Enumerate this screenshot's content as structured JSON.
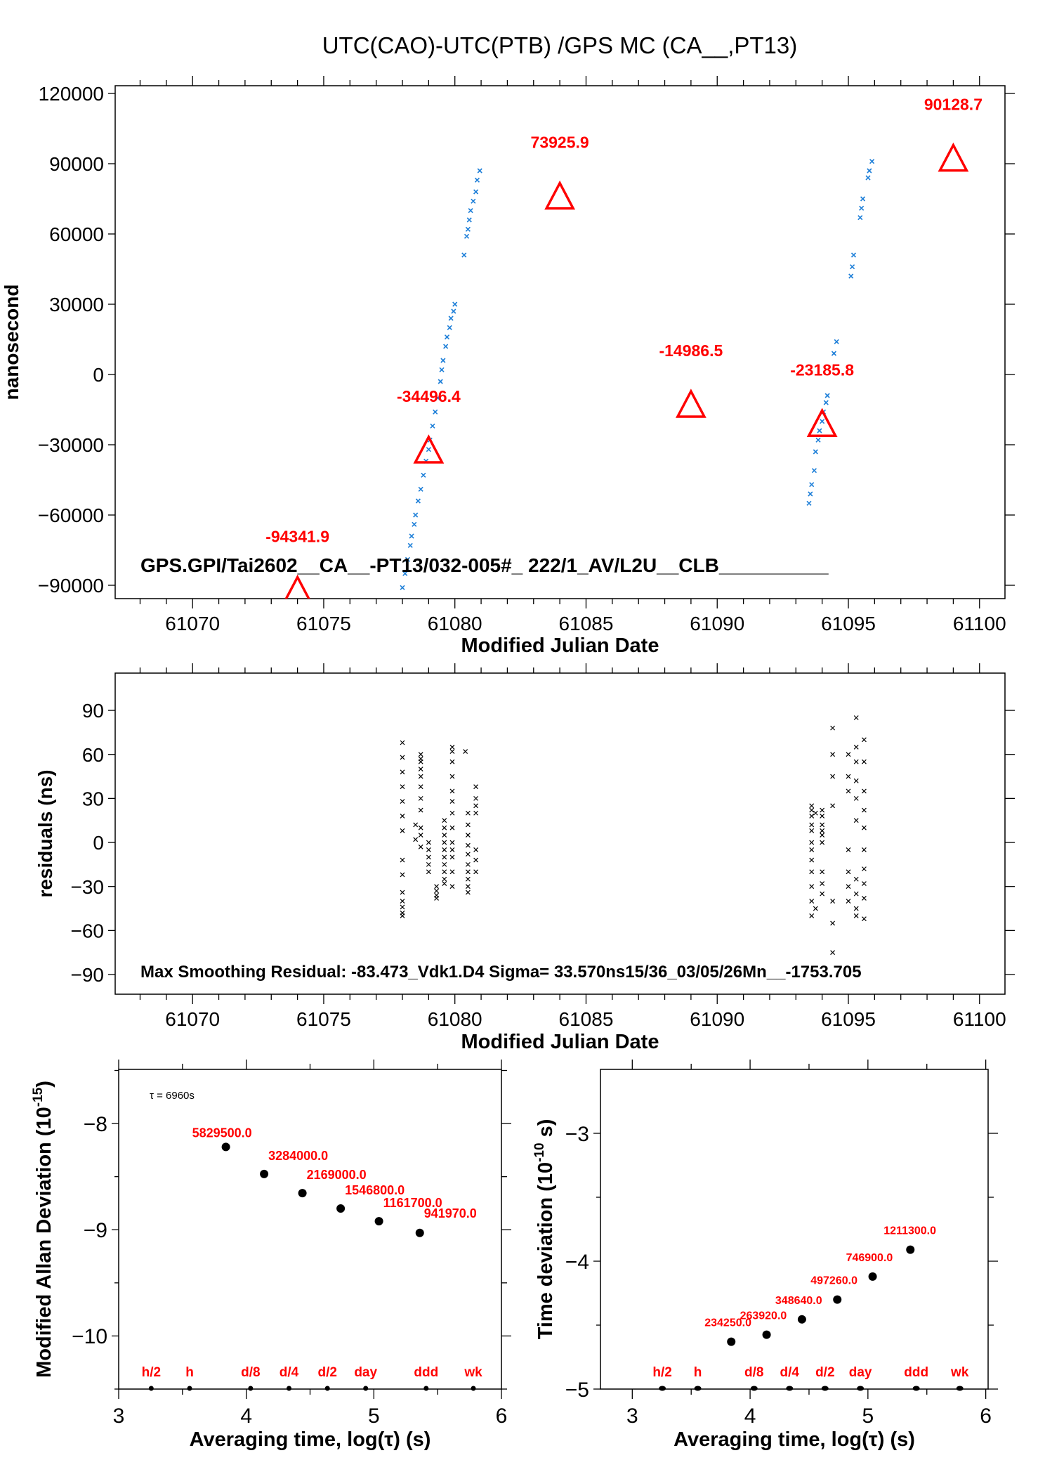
{
  "chart_data": [
    {
      "type": "scatter",
      "title": "UTC(CAO)-UTC(PTB)  /GPS  MC  (CA__,PT13)",
      "xlabel": "Modified Julian Date",
      "ylabel": "nanosecond",
      "xlim": [
        61067.05,
        61100.97
      ],
      "ylim": [
        -95700,
        123300
      ],
      "xticks": [
        61070,
        61075,
        61080,
        61085,
        61090,
        61095,
        61100
      ],
      "yticks": [
        120000,
        90000,
        60000,
        30000,
        0,
        -30000,
        -60000,
        -90000
      ],
      "ytick_labels": [
        "120000",
        "90000",
        "60000",
        "30000",
        "0",
        "−30000",
        "−60000",
        "−90000"
      ],
      "annotation": "GPS.GPI/Tai2602__CA__-PT13/032-005#_  222/1_AV/L2U__CLB__________",
      "colors": {
        "data": "#1e7fd8",
        "markers": "#ff0000"
      },
      "series": [
        {
          "marker": "x",
          "points": [
            [
              61077.9,
              -97000
            ],
            [
              61078.0,
              -91000
            ],
            [
              61078.1,
              -85000
            ],
            [
              61078.2,
              -79000
            ],
            [
              61078.3,
              -73000
            ],
            [
              61078.35,
              -69000
            ],
            [
              61078.45,
              -64000
            ],
            [
              61078.5,
              -60000
            ],
            [
              61078.6,
              -54000
            ],
            [
              61078.7,
              -49000
            ],
            [
              61078.8,
              -43000
            ],
            [
              61078.9,
              -37000
            ],
            [
              61079.0,
              -32000
            ],
            [
              61079.05,
              -28000
            ],
            [
              61079.15,
              -22000
            ],
            [
              61079.25,
              -16000
            ],
            [
              61079.35,
              -10000
            ],
            [
              61079.45,
              -3000
            ],
            [
              61079.5,
              2000
            ],
            [
              61079.55,
              6000
            ],
            [
              61079.65,
              12000
            ],
            [
              61079.7,
              16000
            ],
            [
              61079.8,
              20000
            ],
            [
              61079.85,
              24000
            ],
            [
              61079.95,
              27000
            ],
            [
              61080.0,
              30000
            ],
            [
              61080.35,
              51000
            ],
            [
              61080.45,
              59000
            ],
            [
              61080.5,
              62000
            ],
            [
              61080.55,
              66000
            ],
            [
              61080.6,
              70000
            ],
            [
              61080.7,
              74000
            ],
            [
              61080.8,
              78000
            ],
            [
              61080.85,
              83000
            ],
            [
              61080.95,
              87000
            ],
            [
              61093.5,
              -55000
            ],
            [
              61093.55,
              -51000
            ],
            [
              61093.6,
              -47000
            ],
            [
              61093.7,
              -41000
            ],
            [
              61093.75,
              -33000
            ],
            [
              61093.85,
              -28000
            ],
            [
              61093.9,
              -24000
            ],
            [
              61094.0,
              -20000
            ],
            [
              61094.05,
              -16000
            ],
            [
              61094.15,
              -12000
            ],
            [
              61094.2,
              -9000
            ],
            [
              61094.45,
              9000
            ],
            [
              61094.55,
              14000
            ],
            [
              61095.1,
              42000
            ],
            [
              61095.15,
              46000
            ],
            [
              61095.2,
              51000
            ],
            [
              61095.45,
              67000
            ],
            [
              61095.5,
              71000
            ],
            [
              61095.55,
              75000
            ],
            [
              61095.75,
              84000
            ],
            [
              61095.8,
              87000
            ],
            [
              61095.9,
              91000
            ]
          ]
        },
        {
          "marker": "triangle",
          "points": [
            [
              61074,
              -94341.9
            ],
            [
              61079,
              -34496.4
            ],
            [
              61084,
              73925.9
            ],
            [
              61089,
              -14986.5
            ],
            [
              61094,
              -23185.8
            ],
            [
              61099,
              90128.7
            ]
          ],
          "labels": [
            "-94341.9",
            "-34496.4",
            "73925.9",
            "-14986.5",
            "-23185.8",
            "90128.7"
          ]
        }
      ]
    },
    {
      "type": "scatter",
      "xlabel": "Modified Julian Date",
      "ylabel": "residuals (ns)",
      "xlim": [
        61067.05,
        61100.97
      ],
      "ylim": [
        -103.4,
        115.4
      ],
      "xticks": [
        61070,
        61075,
        61080,
        61085,
        61090,
        61095,
        61100
      ],
      "yticks": [
        90,
        60,
        30,
        0,
        -30,
        -60,
        -90
      ],
      "ytick_labels": [
        "90",
        "60",
        "30",
        "0",
        "−30",
        "−60",
        "−90"
      ],
      "annotation": "Max Smoothing Residual: -83.473_Vdk1.D4  Sigma= 33.570ns15/36_03/05/26Mn__-1753.705",
      "colors": {
        "data": "#000000"
      },
      "columns": [
        {
          "x": 61078.0,
          "y": [
            68,
            58,
            48,
            38,
            28,
            18,
            8,
            -12,
            -22,
            -34,
            -40,
            -44,
            -48,
            -50
          ]
        },
        {
          "x": 61078.5,
          "y": [
            12,
            2
          ]
        },
        {
          "x": 61078.7,
          "y": [
            60,
            57,
            55,
            50,
            45,
            38,
            30,
            22,
            10,
            5,
            -3
          ]
        },
        {
          "x": 61079.0,
          "y": [
            0,
            -5,
            -10,
            -15,
            -20
          ]
        },
        {
          "x": 61079.3,
          "y": [
            -30,
            -33,
            -36,
            -38
          ]
        },
        {
          "x": 61079.6,
          "y": [
            15,
            10,
            5,
            0,
            -5,
            -10,
            -15,
            -20,
            -25,
            -28
          ]
        },
        {
          "x": 61079.9,
          "y": [
            65,
            62,
            55,
            45,
            35,
            28,
            20,
            10,
            0,
            -5,
            -10,
            -20,
            -30
          ]
        },
        {
          "x": 61080.4,
          "y": [
            62
          ]
        },
        {
          "x": 61080.5,
          "y": [
            20,
            12,
            5,
            -2,
            -8,
            -15,
            -20,
            -25,
            -30,
            -34
          ]
        },
        {
          "x": 61080.8,
          "y": [
            38,
            30,
            25,
            20,
            -5,
            -12,
            -20
          ]
        },
        {
          "x": 61093.6,
          "y": [
            25,
            22,
            18,
            12,
            8,
            0,
            -5,
            -12,
            -20,
            -30,
            -40,
            -50
          ]
        },
        {
          "x": 61093.75,
          "y": [
            20,
            -45
          ]
        },
        {
          "x": 61094.0,
          "y": [
            22,
            18,
            12,
            8,
            5,
            0,
            -20,
            -28,
            -35
          ]
        },
        {
          "x": 61094.4,
          "y": [
            78,
            60,
            45,
            25,
            -40,
            -55,
            -75
          ]
        },
        {
          "x": 61095.0,
          "y": [
            60,
            45,
            35,
            -5,
            -20,
            -30,
            -40
          ]
        },
        {
          "x": 61095.3,
          "y": [
            85,
            65,
            55,
            42,
            30,
            15,
            -25,
            -35,
            -45,
            -50
          ]
        },
        {
          "x": 61095.6,
          "y": [
            70,
            55,
            35,
            22,
            10,
            -5,
            -18,
            -28,
            -38,
            -52
          ]
        }
      ]
    },
    {
      "type": "scatter",
      "xlabel": "Averaging time, log(τ) (s)",
      "ylabel": "Modified Allan Deviation (10",
      "ylabel_exp": "-15",
      "ylabel_end": ")",
      "annotation": "τ = 6960s",
      "xlim": [
        3,
        6
      ],
      "ylim": [
        -10.5,
        -7.49
      ],
      "xticks": [
        3,
        4,
        5,
        6
      ],
      "yticks": [
        -8,
        -9,
        -10
      ],
      "ytick_labels": [
        "−8",
        "−9",
        "−10"
      ],
      "points": [
        [
          3.84,
          -8.22
        ],
        [
          4.14,
          -8.475
        ],
        [
          4.44,
          -8.655
        ],
        [
          4.74,
          -8.8
        ],
        [
          5.04,
          -8.92
        ],
        [
          5.36,
          -9.03
        ]
      ],
      "labels": [
        "5829500.0",
        "3284000.0",
        "2169000.0",
        "1546800.0",
        "1161700.0",
        "941970.0"
      ],
      "time_markers": [
        {
          "x": 3.255,
          "label": "h/2"
        },
        {
          "x": 3.556,
          "label": "h"
        },
        {
          "x": 4.034,
          "label": "d/8"
        },
        {
          "x": 4.335,
          "label": "d/4"
        },
        {
          "x": 4.636,
          "label": "d/2"
        },
        {
          "x": 4.936,
          "label": "day"
        },
        {
          "x": 5.41,
          "label": "ddd"
        },
        {
          "x": 5.78,
          "label": "wk"
        }
      ],
      "colors": {
        "labels": "#ff0000",
        "points": "#000000"
      }
    },
    {
      "type": "scatter",
      "xlabel": "Averaging time, log(τ) (s)",
      "ylabel": "Time deviation (10",
      "ylabel_exp": "-10",
      "ylabel_end": " s)",
      "xlim": [
        2.73,
        6.02
      ],
      "ylim": [
        -5,
        -2.5
      ],
      "xticks": [
        3,
        4,
        5,
        6
      ],
      "yticks": [
        -3,
        -4,
        -5
      ],
      "ytick_labels": [
        "−3",
        "−4",
        "−5"
      ],
      "points": [
        [
          3.84,
          -4.63
        ],
        [
          4.14,
          -4.575
        ],
        [
          4.44,
          -4.455
        ],
        [
          4.74,
          -4.3
        ],
        [
          5.04,
          -4.12
        ],
        [
          5.36,
          -3.91
        ]
      ],
      "labels": [
        "234250.0",
        "263920.0",
        "348640.0",
        "497260.0",
        "746900.0",
        "1211300.0"
      ],
      "time_markers": [
        {
          "x": 3.255,
          "label": "h/2"
        },
        {
          "x": 3.556,
          "label": "h"
        },
        {
          "x": 4.034,
          "label": "d/8"
        },
        {
          "x": 4.335,
          "label": "d/4"
        },
        {
          "x": 4.636,
          "label": "d/2"
        },
        {
          "x": 4.936,
          "label": "day"
        },
        {
          "x": 5.41,
          "label": "ddd"
        },
        {
          "x": 5.78,
          "label": "wk"
        }
      ],
      "colors": {
        "labels": "#ff0000",
        "points": "#000000"
      }
    }
  ]
}
